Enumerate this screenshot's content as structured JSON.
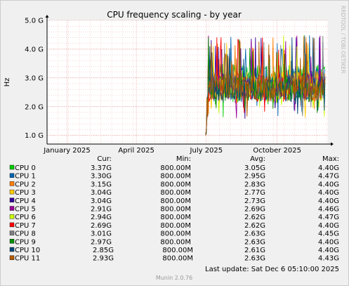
{
  "chart_data": {
    "type": "line",
    "title": "CPU frequency scaling - by year",
    "ylabel": "Hz",
    "xlabel": "",
    "watermark": "RRDTOOL / TOBI OETIKER",
    "footer": "Munin 2.0.76",
    "last_update": "Last update: Sat Dec  6 05:10:00 2025",
    "x_ticks": [
      "January 2025",
      "April 2025",
      "July 2025",
      "October 2025"
    ],
    "y_ticks": [
      "1.0 G",
      "2.0 G",
      "3.0 G",
      "4.0 G",
      "5.0 G"
    ],
    "y_tick_values": [
      1.0,
      2.0,
      3.0,
      4.0,
      5.0
    ],
    "ylim": [
      0.7,
      5.0
    ],
    "x_range": [
      "2024-12-06",
      "2025-12-06"
    ],
    "x_tick_dates": [
      "2025-01-01",
      "2025-04-01",
      "2025-07-01",
      "2025-10-01"
    ],
    "data_start": "2025-06-30",
    "grid": true,
    "legend_columns": [
      "Cur:",
      "Min:",
      "Avg:",
      "Max:"
    ],
    "series": [
      {
        "name": "CPU 0",
        "color": "#00CC00",
        "cur": "3.37G",
        "min": "800.00M",
        "avg": "3.05G",
        "max": "4.40G"
      },
      {
        "name": "CPU 1",
        "color": "#0066B3",
        "cur": "3.30G",
        "min": "800.00M",
        "avg": "2.95G",
        "max": "4.47G"
      },
      {
        "name": "CPU 2",
        "color": "#FF8000",
        "cur": "3.15G",
        "min": "800.00M",
        "avg": "2.83G",
        "max": "4.40G"
      },
      {
        "name": "CPU 3",
        "color": "#FFCC00",
        "cur": "3.04G",
        "min": "800.00M",
        "avg": "2.77G",
        "max": "4.40G"
      },
      {
        "name": "CPU 4",
        "color": "#330099",
        "cur": "3.04G",
        "min": "800.00M",
        "avg": "2.73G",
        "max": "4.40G"
      },
      {
        "name": "CPU 5",
        "color": "#990099",
        "cur": "2.91G",
        "min": "800.00M",
        "avg": "2.69G",
        "max": "4.46G"
      },
      {
        "name": "CPU 6",
        "color": "#CCFF00",
        "cur": "2.94G",
        "min": "800.00M",
        "avg": "2.62G",
        "max": "4.47G"
      },
      {
        "name": "CPU 7",
        "color": "#FF0000",
        "cur": "2.69G",
        "min": "800.00M",
        "avg": "2.62G",
        "max": "4.40G"
      },
      {
        "name": "CPU 8",
        "color": "#808080",
        "cur": "3.01G",
        "min": "800.00M",
        "avg": "2.63G",
        "max": "4.45G"
      },
      {
        "name": "CPU 9",
        "color": "#008F00",
        "cur": "2.97G",
        "min": "800.00M",
        "avg": "2.63G",
        "max": "4.40G"
      },
      {
        "name": "CPU 10",
        "color": "#00487D",
        "cur": "2.85G",
        "min": "800.00M",
        "avg": "2.61G",
        "max": "4.40G"
      },
      {
        "name": "CPU 11",
        "color": "#B35A00",
        "cur": "2.93G",
        "min": "800.00M",
        "avg": "2.63G",
        "max": "4.43G"
      }
    ]
  }
}
